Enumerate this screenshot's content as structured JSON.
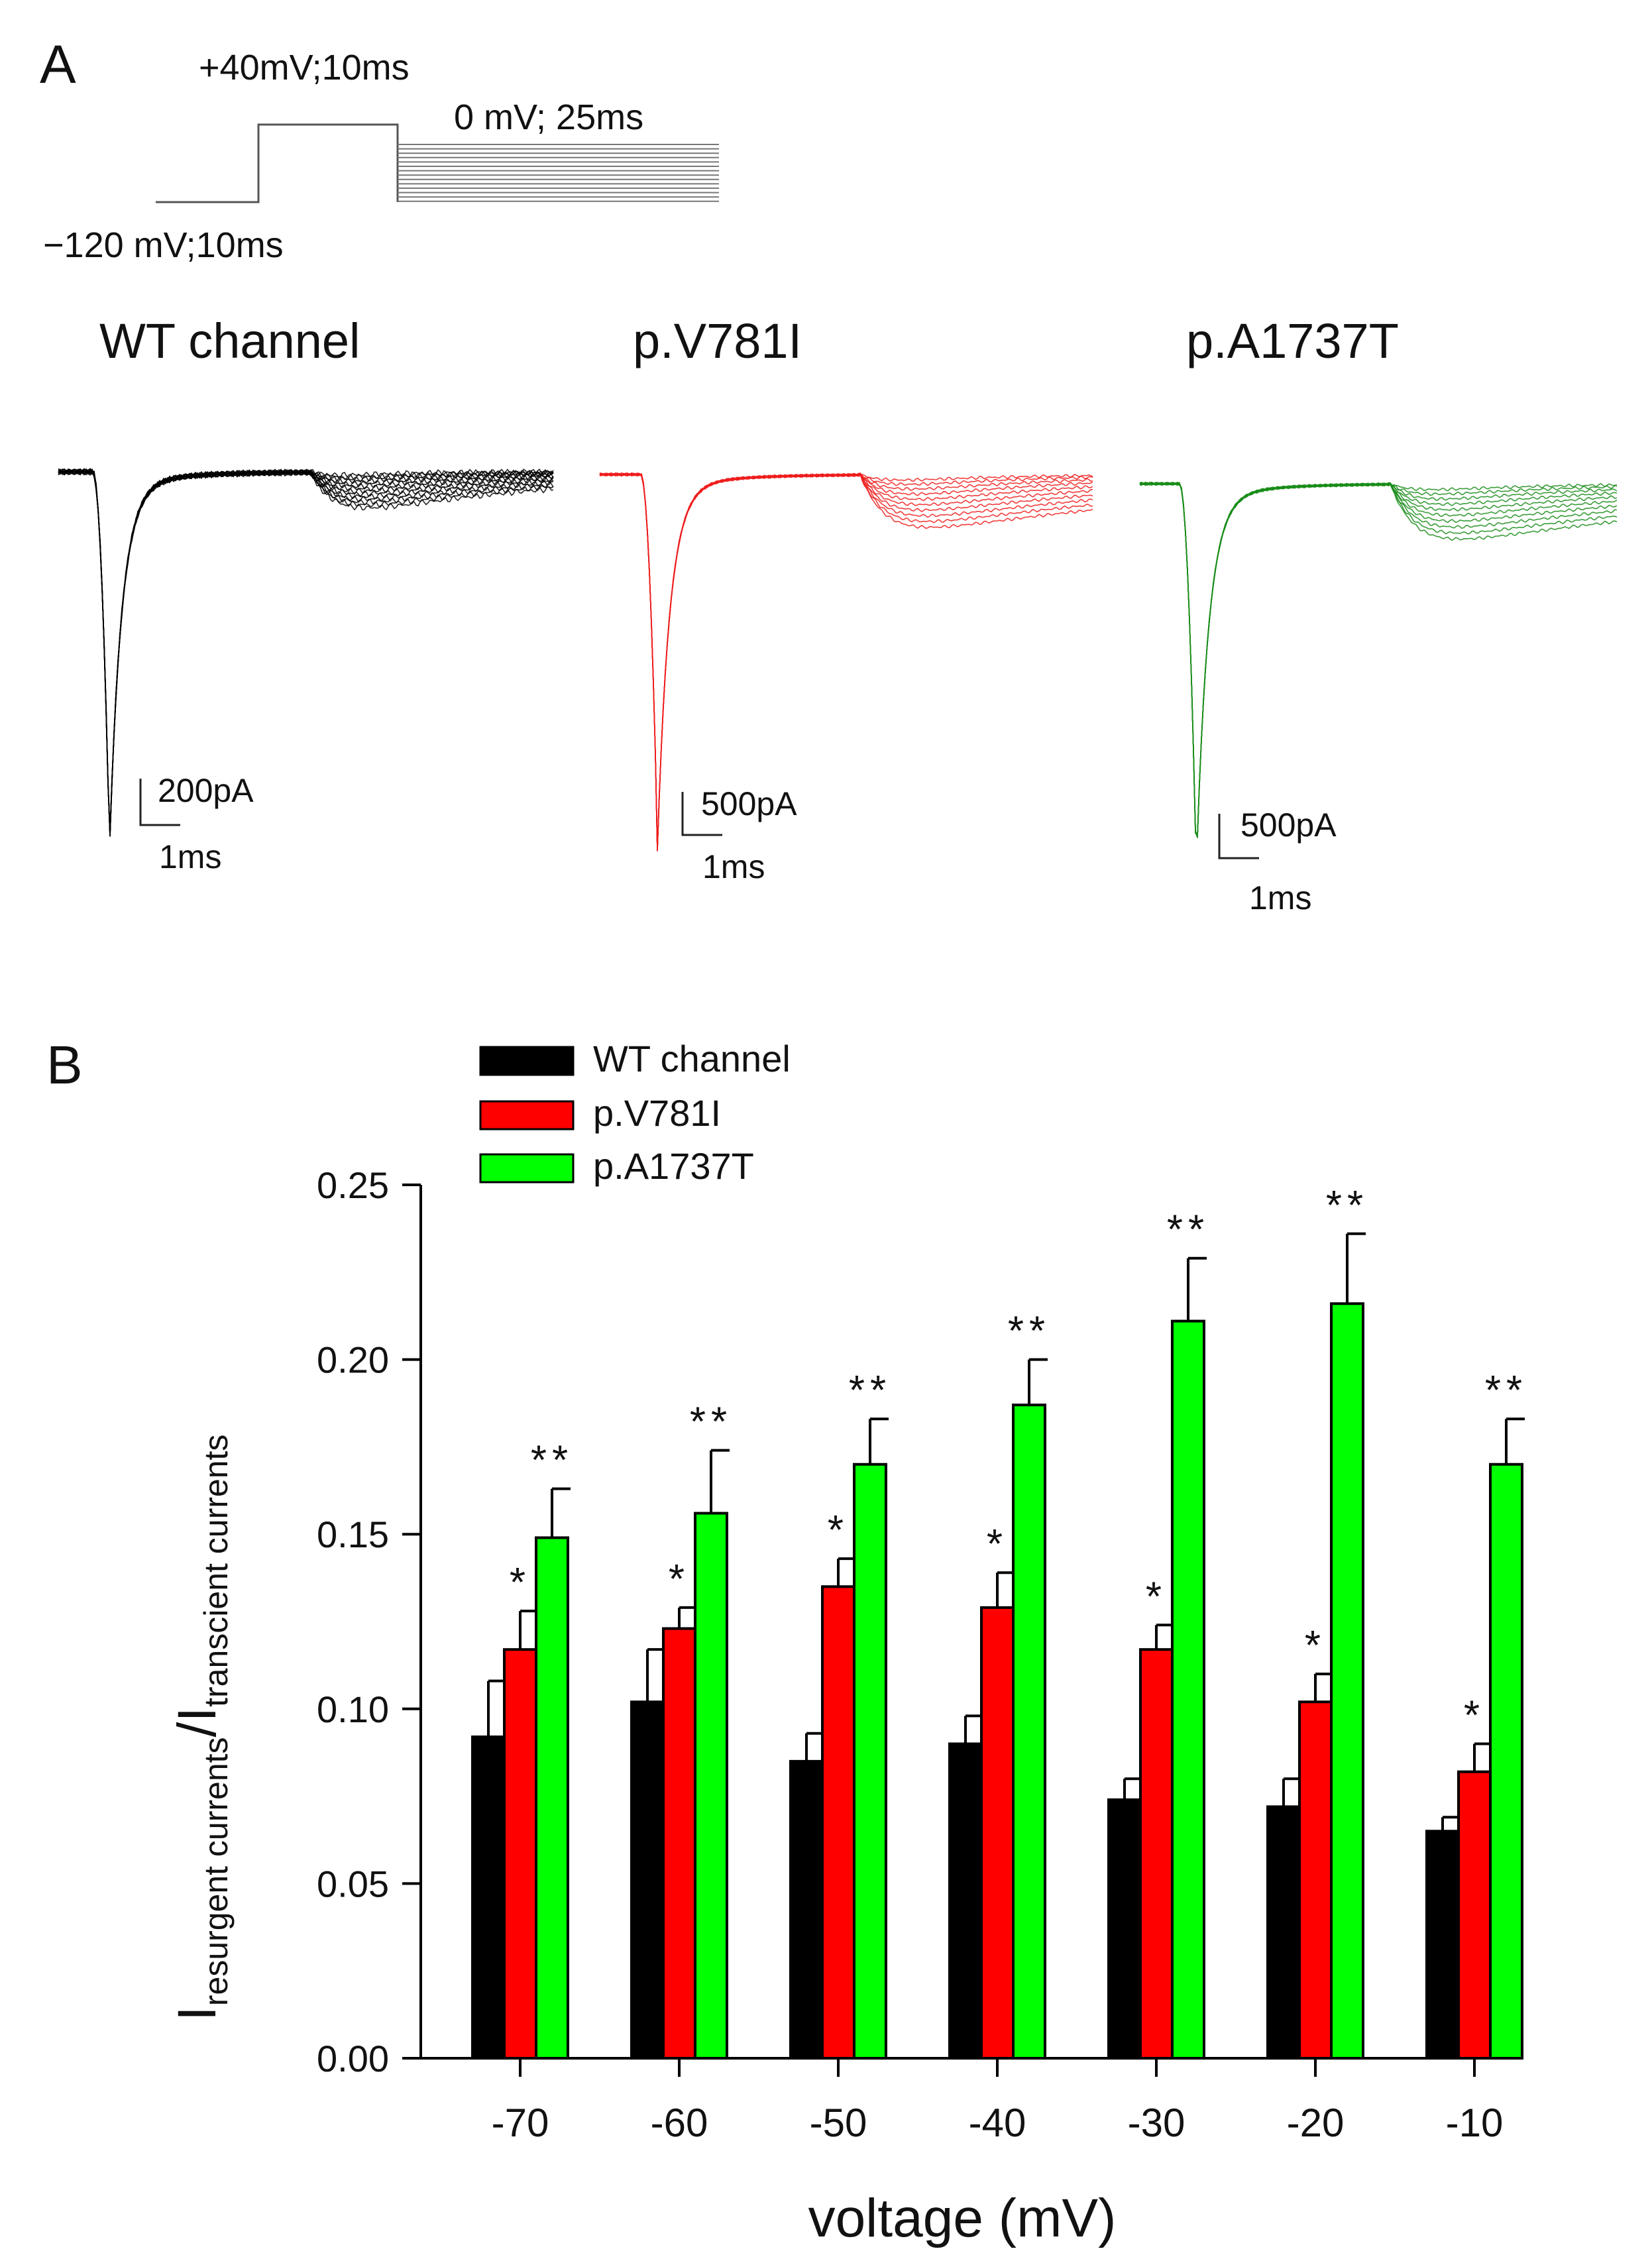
{
  "panel_a": {
    "label": "A",
    "protocol": {
      "step1": "−120 mV;10ms",
      "step2": "+40mV;10ms",
      "step3": "0 mV; 25ms"
    },
    "traces": [
      {
        "title": "WT channel",
        "color": "#000000",
        "scale_current": "200pA",
        "scale_time": "1ms"
      },
      {
        "title": "p.V781I",
        "color": "#ee1c1c",
        "scale_current": "500pA",
        "scale_time": "1ms"
      },
      {
        "title": "p.A1737T",
        "color": "#1a8c1a",
        "scale_current": "500pA",
        "scale_time": "1ms"
      }
    ]
  },
  "panel_b": {
    "label": "B"
  },
  "chart_data": {
    "type": "bar",
    "title": "",
    "xlabel": "voltage (mV)",
    "ylabel_main": "I",
    "ylabel_sub1": "resurgent currents",
    "ylabel_slash": "/I",
    "ylabel_sub2": "transcient currents",
    "ylim": [
      0,
      0.25
    ],
    "yticks": [
      "0.00",
      "0.05",
      "0.10",
      "0.15",
      "0.20",
      "0.25"
    ],
    "categories": [
      "-70",
      "-60",
      "-50",
      "-40",
      "-30",
      "-20",
      "-10"
    ],
    "legend_position": "top-left",
    "series": [
      {
        "name": "WT channel",
        "color": "#000000",
        "values": [
          0.092,
          0.102,
          0.085,
          0.09,
          0.074,
          0.072,
          0.065
        ],
        "errors": [
          0.016,
          0.015,
          0.008,
          0.008,
          0.006,
          0.008,
          0.004
        ],
        "sig": [
          "",
          "",
          "",
          "",
          "",
          "",
          ""
        ]
      },
      {
        "name": "p.V781I",
        "color": "#ff0000",
        "values": [
          0.117,
          0.123,
          0.135,
          0.129,
          0.117,
          0.102,
          0.082
        ],
        "errors": [
          0.011,
          0.006,
          0.008,
          0.01,
          0.007,
          0.008,
          0.008
        ],
        "sig": [
          "*",
          "*",
          "*",
          "*",
          "*",
          "*",
          "*"
        ]
      },
      {
        "name": "p.A1737T",
        "color": "#00ff00",
        "values": [
          0.149,
          0.156,
          0.17,
          0.187,
          0.211,
          0.216,
          0.17
        ],
        "errors": [
          0.014,
          0.018,
          0.013,
          0.013,
          0.018,
          0.02,
          0.013
        ],
        "sig": [
          "**",
          "**",
          "**",
          "**",
          "**",
          "**",
          "**"
        ]
      }
    ]
  }
}
